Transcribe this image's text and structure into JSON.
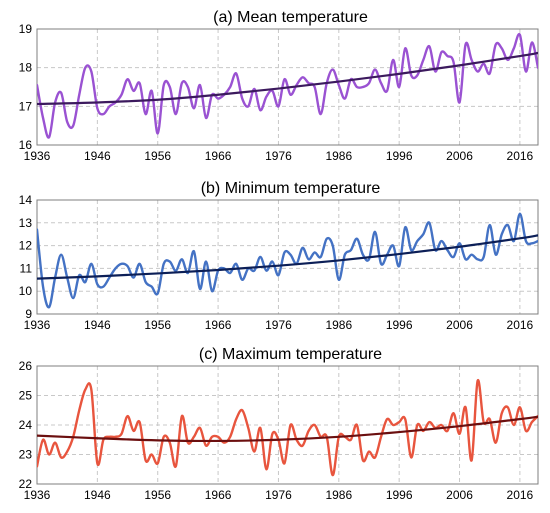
{
  "chart_data": [
    {
      "type": "line",
      "title": "(a) Mean temperature",
      "x_ticks": [
        "1936",
        "1946",
        "1956",
        "1966",
        "1976",
        "1986",
        "1996",
        "2006",
        "2016"
      ],
      "y_ticks": [
        "16",
        "17",
        "18",
        "19"
      ],
      "xlim": [
        1936,
        2019
      ],
      "ylim": [
        16,
        19
      ],
      "grid": true,
      "series": [
        {
          "role": "annual",
          "color": "#9a52d2",
          "x": [
            1936,
            1937,
            1938,
            1939,
            1940,
            1941,
            1942,
            1943,
            1944,
            1945,
            1946,
            1947,
            1948,
            1949,
            1950,
            1951,
            1952,
            1953,
            1954,
            1955,
            1956,
            1957,
            1958,
            1959,
            1960,
            1961,
            1962,
            1963,
            1964,
            1965,
            1966,
            1967,
            1968,
            1969,
            1970,
            1971,
            1972,
            1973,
            1974,
            1975,
            1976,
            1977,
            1978,
            1979,
            1980,
            1981,
            1982,
            1983,
            1984,
            1985,
            1986,
            1987,
            1988,
            1989,
            1990,
            1991,
            1992,
            1993,
            1994,
            1995,
            1996,
            1997,
            1998,
            1999,
            2000,
            2001,
            2002,
            2003,
            2004,
            2005,
            2006,
            2007,
            2008,
            2009,
            2010,
            2011,
            2012,
            2013,
            2014,
            2015,
            2016,
            2017,
            2018,
            2019
          ],
          "y": [
            17.55,
            16.7,
            16.2,
            17.1,
            17.35,
            16.6,
            16.5,
            17.3,
            18.0,
            17.9,
            16.95,
            16.8,
            17.0,
            17.1,
            17.3,
            17.7,
            17.4,
            17.6,
            16.8,
            17.4,
            16.3,
            17.55,
            17.5,
            16.8,
            17.6,
            17.5,
            16.95,
            17.55,
            16.7,
            17.3,
            17.2,
            17.3,
            17.5,
            17.85,
            17.2,
            17.0,
            17.45,
            16.9,
            17.25,
            17.4,
            17.0,
            17.7,
            17.3,
            17.55,
            17.75,
            17.6,
            17.5,
            16.8,
            17.6,
            17.95,
            17.55,
            17.2,
            17.7,
            17.5,
            17.5,
            17.6,
            17.95,
            17.6,
            17.4,
            18.2,
            17.5,
            18.5,
            17.8,
            17.8,
            18.2,
            18.55,
            17.9,
            18.4,
            18.3,
            18.15,
            17.1,
            18.6,
            18.2,
            17.9,
            18.1,
            17.85,
            18.6,
            18.5,
            18.2,
            18.5,
            18.85,
            17.9,
            18.65,
            18.0
          ]
        },
        {
          "role": "trend",
          "color": "#3c1a5e",
          "x": [
            1936,
            1946,
            1956,
            1966,
            1976,
            1986,
            1996,
            2006,
            2016,
            2019
          ],
          "y": [
            17.06,
            17.1,
            17.17,
            17.3,
            17.46,
            17.64,
            17.84,
            18.06,
            18.3,
            18.38
          ]
        }
      ]
    },
    {
      "type": "line",
      "title": "(b) Minimum temperature",
      "x_ticks": [
        "1936",
        "1946",
        "1956",
        "1966",
        "1976",
        "1986",
        "1996",
        "2006",
        "2016"
      ],
      "y_ticks": [
        "9",
        "10",
        "11",
        "12",
        "13",
        "14"
      ],
      "xlim": [
        1936,
        2019
      ],
      "ylim": [
        9,
        14
      ],
      "grid": true,
      "series": [
        {
          "role": "annual",
          "color": "#4472c4",
          "x": [
            1936,
            1937,
            1938,
            1939,
            1940,
            1941,
            1942,
            1943,
            1944,
            1945,
            1946,
            1947,
            1948,
            1949,
            1950,
            1951,
            1952,
            1953,
            1954,
            1955,
            1956,
            1957,
            1958,
            1959,
            1960,
            1961,
            1962,
            1963,
            1964,
            1965,
            1966,
            1967,
            1968,
            1969,
            1970,
            1971,
            1972,
            1973,
            1974,
            1975,
            1976,
            1977,
            1978,
            1979,
            1980,
            1981,
            1982,
            1983,
            1984,
            1985,
            1986,
            1987,
            1988,
            1989,
            1990,
            1991,
            1992,
            1993,
            1994,
            1995,
            1996,
            1997,
            1998,
            1999,
            2000,
            2001,
            2002,
            2003,
            2004,
            2005,
            2006,
            2007,
            2008,
            2009,
            2010,
            2011,
            2012,
            2013,
            2014,
            2015,
            2016,
            2017,
            2018,
            2019
          ],
          "y": [
            12.7,
            10.2,
            9.3,
            10.6,
            11.6,
            10.6,
            9.7,
            10.7,
            10.4,
            11.2,
            10.3,
            10.2,
            10.6,
            11.0,
            11.2,
            11.1,
            10.6,
            11.2,
            10.4,
            10.2,
            9.9,
            11.2,
            11.3,
            10.9,
            11.4,
            10.8,
            11.75,
            10.1,
            11.3,
            10.0,
            10.9,
            11.0,
            10.8,
            11.2,
            10.5,
            11.0,
            10.9,
            11.5,
            10.9,
            11.3,
            10.7,
            11.7,
            11.6,
            11.2,
            11.9,
            11.4,
            11.7,
            11.5,
            12.3,
            12.0,
            10.5,
            11.6,
            11.8,
            12.3,
            11.6,
            11.4,
            12.6,
            11.2,
            11.6,
            12.0,
            11.1,
            12.8,
            11.8,
            12.2,
            12.5,
            13.0,
            11.8,
            12.2,
            11.8,
            11.5,
            12.1,
            11.4,
            11.6,
            11.4,
            11.5,
            12.9,
            11.6,
            12.5,
            12.9,
            12.2,
            13.4,
            12.2,
            12.1,
            12.2
          ]
        },
        {
          "role": "trend",
          "color": "#0c1f57",
          "x": [
            1936,
            1946,
            1956,
            1966,
            1976,
            1986,
            1996,
            2006,
            2016,
            2019
          ],
          "y": [
            10.55,
            10.65,
            10.78,
            10.93,
            11.12,
            11.35,
            11.63,
            11.95,
            12.32,
            12.45
          ]
        }
      ]
    },
    {
      "type": "line",
      "title": "(c) Maximum temperature",
      "x_ticks": [
        "1936",
        "1946",
        "1956",
        "1966",
        "1976",
        "1986",
        "1996",
        "2006",
        "2016"
      ],
      "y_ticks": [
        "22",
        "23",
        "24",
        "25",
        "26"
      ],
      "xlim": [
        1936,
        2019
      ],
      "ylim": [
        22,
        26
      ],
      "grid": true,
      "series": [
        {
          "role": "annual",
          "color": "#e8553e",
          "x": [
            1936,
            1937,
            1938,
            1939,
            1940,
            1941,
            1942,
            1943,
            1944,
            1945,
            1946,
            1947,
            1948,
            1949,
            1950,
            1951,
            1952,
            1953,
            1954,
            1955,
            1956,
            1957,
            1958,
            1959,
            1960,
            1961,
            1962,
            1963,
            1964,
            1965,
            1966,
            1967,
            1968,
            1969,
            1970,
            1971,
            1972,
            1973,
            1974,
            1975,
            1976,
            1977,
            1978,
            1979,
            1980,
            1981,
            1982,
            1983,
            1984,
            1985,
            1986,
            1987,
            1988,
            1989,
            1990,
            1991,
            1992,
            1993,
            1994,
            1995,
            1996,
            1997,
            1998,
            1999,
            2000,
            2001,
            2002,
            2003,
            2004,
            2005,
            2006,
            2007,
            2008,
            2009,
            2010,
            2011,
            2012,
            2013,
            2014,
            2015,
            2016,
            2017,
            2018,
            2019
          ],
          "y": [
            22.6,
            23.5,
            23.0,
            23.4,
            22.9,
            23.1,
            23.6,
            24.5,
            25.2,
            25.2,
            22.7,
            23.5,
            23.6,
            23.6,
            23.7,
            24.3,
            23.8,
            24.1,
            22.8,
            23.0,
            22.7,
            23.6,
            23.4,
            22.6,
            24.3,
            23.4,
            23.6,
            23.9,
            23.3,
            23.6,
            23.6,
            23.4,
            23.6,
            24.2,
            24.5,
            23.9,
            23.1,
            23.9,
            22.5,
            23.7,
            23.5,
            22.7,
            24.0,
            23.5,
            23.3,
            23.8,
            24.0,
            23.6,
            23.6,
            22.3,
            23.6,
            23.6,
            23.5,
            24.0,
            22.8,
            23.1,
            22.9,
            23.6,
            24.2,
            24.0,
            24.1,
            24.2,
            22.9,
            24.0,
            23.8,
            24.1,
            23.9,
            24.0,
            23.8,
            24.4,
            23.7,
            24.6,
            22.8,
            25.5,
            24.1,
            24.2,
            23.4,
            24.4,
            24.6,
            24.0,
            24.6,
            23.8,
            24.1,
            24.3
          ]
        },
        {
          "role": "trend",
          "color": "#6b0f0f",
          "x": [
            1936,
            1946,
            1956,
            1966,
            1976,
            1986,
            1996,
            2006,
            2016,
            2019
          ],
          "y": [
            23.64,
            23.55,
            23.48,
            23.46,
            23.5,
            23.6,
            23.76,
            23.96,
            24.2,
            24.28
          ]
        }
      ]
    }
  ]
}
